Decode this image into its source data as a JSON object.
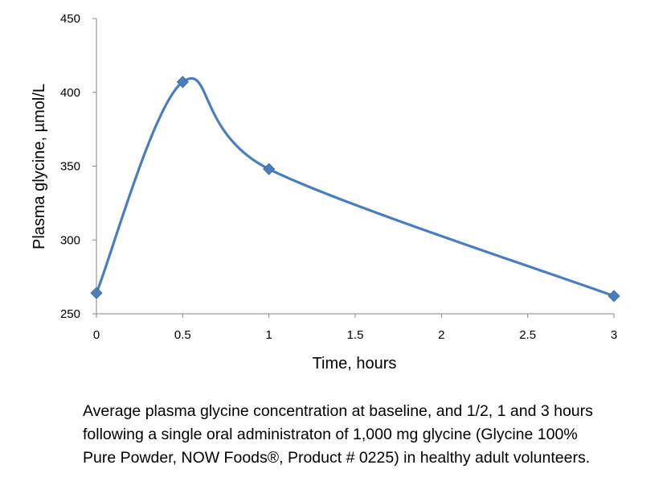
{
  "chart_data": {
    "type": "line",
    "smooth": true,
    "x": [
      0,
      0.5,
      1,
      3
    ],
    "series": [
      {
        "values": [
          264,
          407,
          348,
          262
        ],
        "color": "#4a7ebb",
        "marker": "diamond"
      }
    ],
    "xlabel": "Time, hours",
    "ylabel": "Plasma glycine, µmol/L",
    "xlim": [
      0,
      3
    ],
    "ylim": [
      250,
      450
    ],
    "xticks": [
      "0",
      "0.5",
      "1",
      "1.5",
      "2",
      "2.5",
      "3"
    ],
    "yticks": [
      "250",
      "300",
      "350",
      "400",
      "450"
    ],
    "grid": false,
    "legend": "none"
  },
  "caption": "Average plasma glycine concentration at baseline, and 1/2, 1 and 3 hours following a single oral administraton of 1,000 mg glycine (Glycine 100% Pure Powder, NOW Foods®, Product # 0225) in healthy adult volunteers.",
  "colors": {
    "series": "#4a7ebb",
    "axis": "#868686"
  }
}
